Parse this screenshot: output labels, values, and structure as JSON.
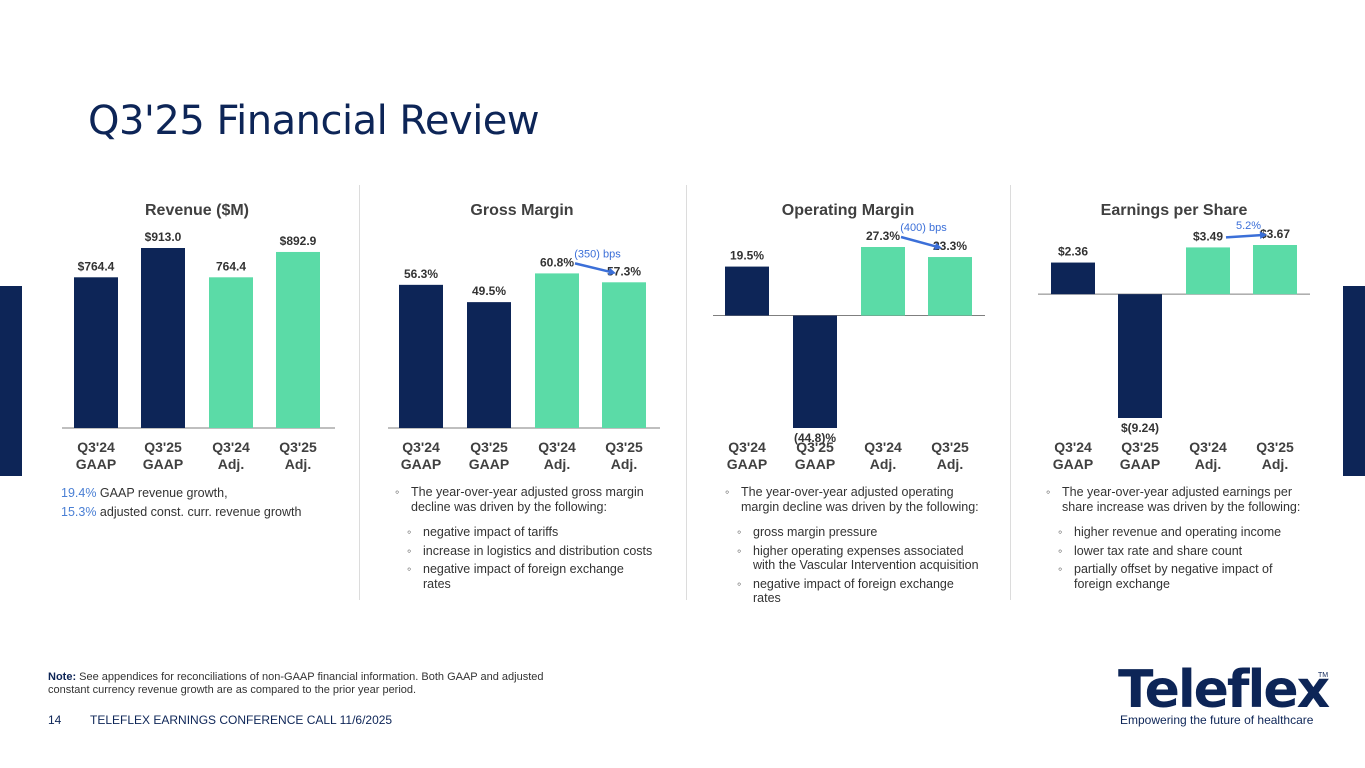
{
  "title": "Q3'25 Financial Review",
  "colors": {
    "navy": "#0d2557",
    "green": "#5bdba7",
    "accent": "#3b6fd8"
  },
  "chart_data": [
    {
      "type": "bar",
      "title": "Revenue ($M)",
      "categories": [
        [
          "Q3'24",
          "GAAP"
        ],
        [
          "Q3'25",
          "GAAP"
        ],
        [
          "Q3'24",
          "Adj."
        ],
        [
          "Q3'25",
          "Adj."
        ]
      ],
      "values": [
        764.4,
        913.0,
        764.4,
        892.9
      ],
      "labels": [
        "$764.4",
        "$913.0",
        "764.4",
        "$892.9"
      ],
      "bar_colors": [
        "navy",
        "navy",
        "green",
        "green"
      ],
      "ylim": [
        0,
        913.0
      ],
      "annotation": null
    },
    {
      "type": "bar",
      "title": "Gross Margin",
      "categories": [
        [
          "Q3'24",
          "GAAP"
        ],
        [
          "Q3'25",
          "GAAP"
        ],
        [
          "Q3'24",
          "Adj."
        ],
        [
          "Q3'25",
          "Adj."
        ]
      ],
      "values": [
        56.3,
        49.5,
        60.8,
        57.3
      ],
      "labels": [
        "56.3%",
        "49.5%",
        "60.8%",
        "57.3%"
      ],
      "bar_colors": [
        "navy",
        "navy",
        "green",
        "green"
      ],
      "ylim": [
        0,
        70
      ],
      "annotation": "(350) bps"
    },
    {
      "type": "bar",
      "title": "Operating Margin",
      "categories": [
        [
          "Q3'24",
          "GAAP"
        ],
        [
          "Q3'25",
          "GAAP"
        ],
        [
          "Q3'24",
          "Adj."
        ],
        [
          "Q3'25",
          "Adj."
        ]
      ],
      "values": [
        19.5,
        -44.8,
        27.3,
        23.3
      ],
      "labels": [
        "19.5%",
        "(44.8)%",
        "27.3%",
        "23.3%"
      ],
      "bar_colors": [
        "navy",
        "navy",
        "green",
        "green"
      ],
      "ylim": [
        -44.8,
        27.3
      ],
      "annotation": "(400) bps"
    },
    {
      "type": "bar",
      "title": "Earnings per Share",
      "categories": [
        [
          "Q3'24",
          "GAAP"
        ],
        [
          "Q3'25",
          "GAAP"
        ],
        [
          "Q3'24",
          "Adj."
        ],
        [
          "Q3'25",
          "Adj."
        ]
      ],
      "values": [
        2.36,
        -9.24,
        3.49,
        3.67
      ],
      "labels": [
        "$2.36",
        "$(9.24)",
        "$3.49",
        "$3.67"
      ],
      "bar_colors": [
        "navy",
        "navy",
        "green",
        "green"
      ],
      "ylim": [
        -9.24,
        3.67
      ],
      "annotation": "5.2%"
    }
  ],
  "revenue_text": {
    "line1_value": "19.4%",
    "line1_text": " GAAP revenue growth,",
    "line2_value": "15.3%",
    "line2_text": " adjusted const. curr. revenue growth"
  },
  "gross_text": {
    "intro": "The year-over-year adjusted gross margin decline was driven by the following:",
    "items": [
      "negative impact of tariffs",
      "increase in logistics and distribution costs",
      "negative impact of foreign exchange rates"
    ]
  },
  "operating_text": {
    "intro": "The year-over-year adjusted operating margin decline was driven by the following:",
    "items": [
      "gross margin pressure",
      "higher operating expenses associated with the Vascular Intervention acquisition",
      "negative impact of foreign exchange rates"
    ]
  },
  "eps_text": {
    "intro": "The year-over-year adjusted earnings per share increase was driven by the following:",
    "items": [
      "higher revenue and operating income",
      "lower tax rate and share count",
      "partially offset by negative impact of foreign exchange"
    ]
  },
  "note": {
    "label": "Note:",
    "text": " See appendices for reconciliations of non-GAAP financial information. Both GAAP and adjusted constant currency revenue growth are as compared to the prior year period."
  },
  "footer": {
    "page": "14",
    "text": "TELEFLEX EARNINGS CONFERENCE CALL 11/6/2025"
  },
  "logo": {
    "name": "Teleflex",
    "tm": "TM",
    "tagline": "Empowering the future of healthcare"
  }
}
